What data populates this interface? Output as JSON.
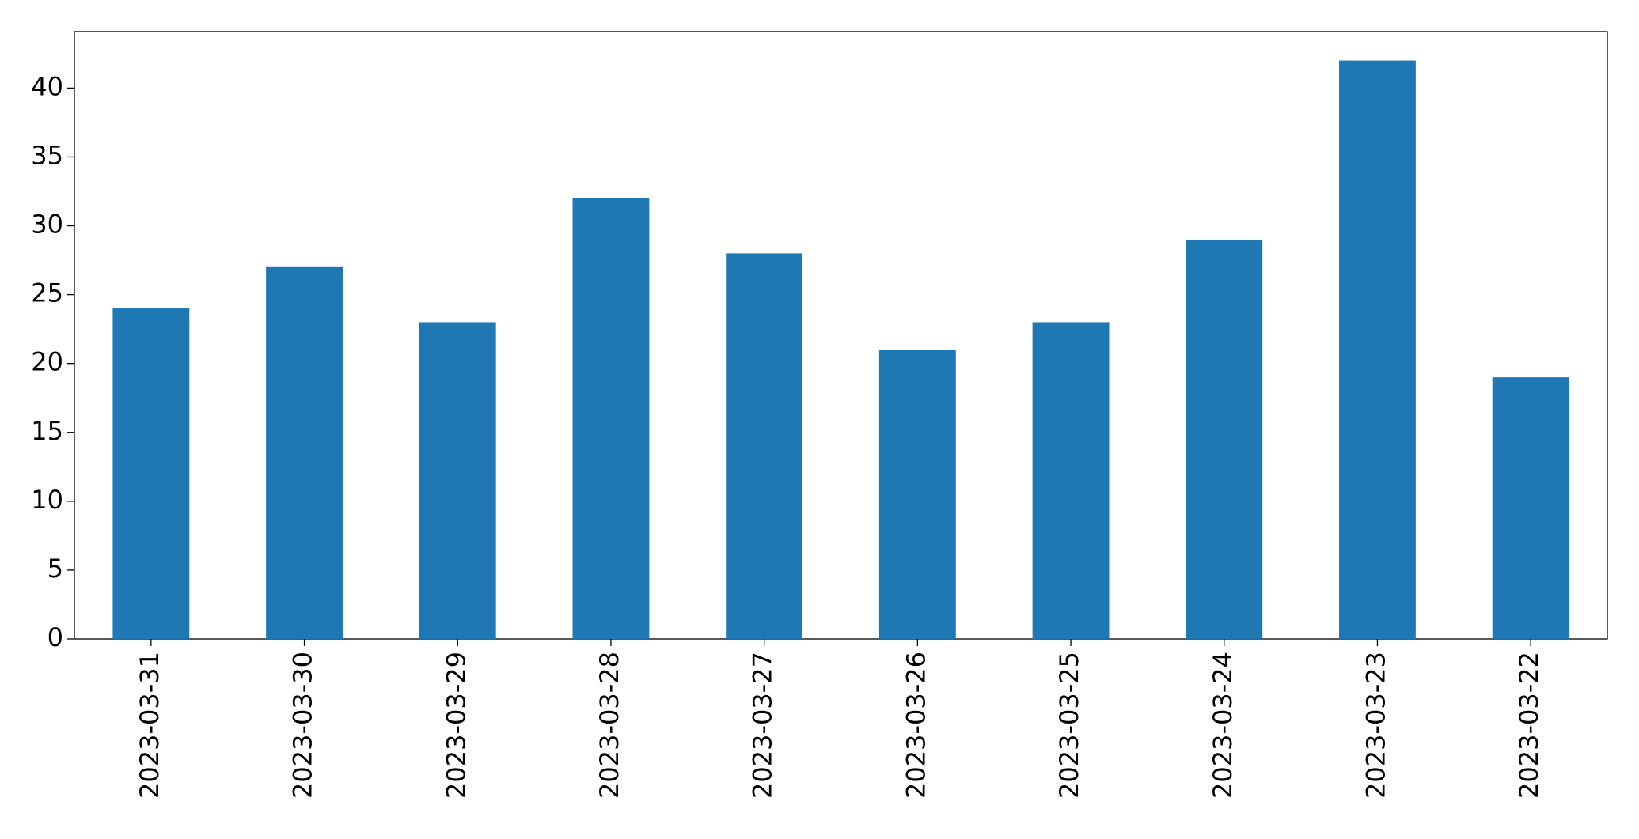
{
  "chart_data": {
    "type": "bar",
    "categories": [
      "2023-03-31",
      "2023-03-30",
      "2023-03-29",
      "2023-03-28",
      "2023-03-27",
      "2023-03-26",
      "2023-03-25",
      "2023-03-24",
      "2023-03-23",
      "2023-03-22"
    ],
    "values": [
      24,
      27,
      23,
      32,
      28,
      21,
      23,
      29,
      42,
      19
    ],
    "color": "#1f77b4",
    "ylim": [
      0,
      44.1
    ],
    "yticks": [
      0,
      5,
      10,
      15,
      20,
      25,
      30,
      35,
      40
    ],
    "grid": false
  }
}
